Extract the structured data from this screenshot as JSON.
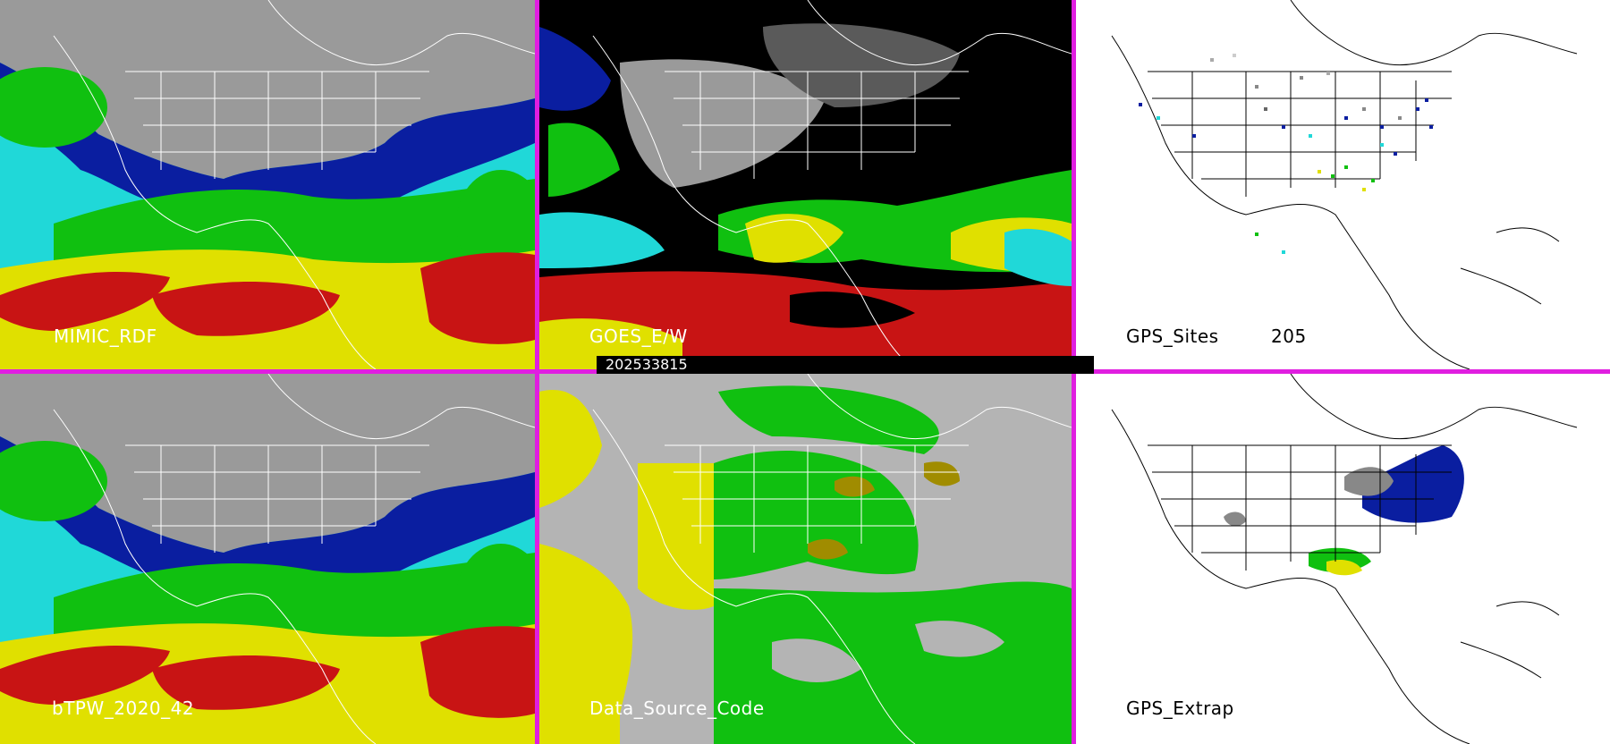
{
  "panels": {
    "mimic_rdf": {
      "label": "MIMIC_RDF"
    },
    "goes_ew": {
      "label": "GOES_E/W"
    },
    "gps_sites": {
      "label": "GPS_Sites",
      "count": "205"
    },
    "btpw": {
      "label": "bTPW_2020_42"
    },
    "data_source_code": {
      "label": "Data_Source_Code"
    },
    "gps_extrap": {
      "label": "GPS_Extrap"
    }
  },
  "timestamp": "202533815",
  "colors": {
    "separator": "#e01ee0",
    "pw_gray": "#9a9a9a",
    "pw_blue": "#0a1ea0",
    "pw_cyan": "#20d8d8",
    "pw_green": "#10c010",
    "pw_yellow": "#e0e000",
    "pw_red": "#c81414",
    "dsc_gray": "#b4b4b4",
    "dsc_yellow": "#e0e000",
    "dsc_green": "#10c010",
    "dsc_olive": "#a08c00"
  },
  "icons": [
    "map-panel",
    "site-marker-icon"
  ]
}
